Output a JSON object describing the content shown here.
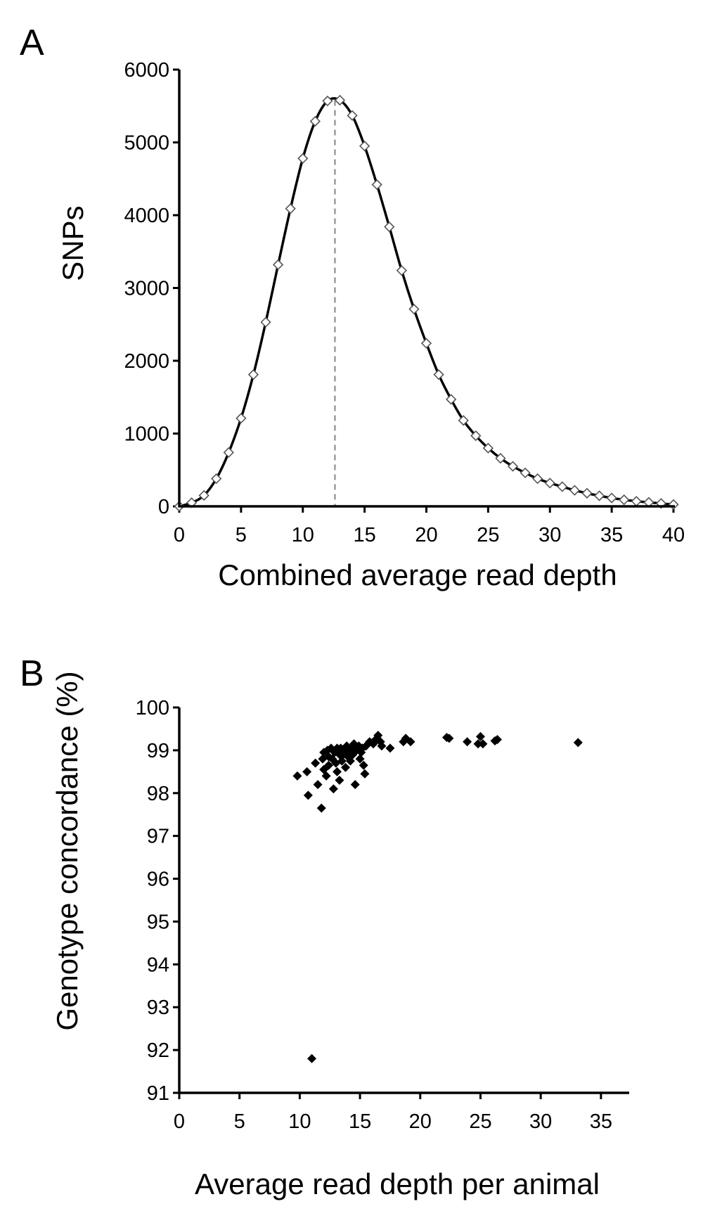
{
  "panels": {
    "a": {
      "letter": "A"
    },
    "b": {
      "letter": "B"
    }
  },
  "chart_data": [
    {
      "type": "line",
      "panel": "A",
      "title": "",
      "xlabel": "Combined average read depth",
      "ylabel": "SNPs",
      "xlim": [
        0,
        40
      ],
      "ylim": [
        0,
        6000
      ],
      "xticks": [
        0,
        5,
        10,
        15,
        20,
        25,
        30,
        35,
        40
      ],
      "yticks": [
        0,
        1000,
        2000,
        3000,
        4000,
        5000,
        6000
      ],
      "marker": "open-diamond",
      "peak_marker_x": 12.6,
      "x": [
        0,
        1,
        2,
        3,
        4,
        5,
        6,
        7,
        8,
        9,
        10,
        11,
        12,
        13,
        14,
        15,
        16,
        17,
        18,
        19,
        20,
        21,
        22,
        23,
        24,
        25,
        26,
        27,
        28,
        29,
        30,
        31,
        32,
        33,
        34,
        35,
        36,
        37,
        38,
        39,
        40
      ],
      "y": [
        0,
        50,
        150,
        380,
        740,
        1210,
        1810,
        2530,
        3320,
        4090,
        4780,
        5290,
        5570,
        5580,
        5370,
        4950,
        4420,
        3840,
        3240,
        2710,
        2240,
        1810,
        1470,
        1180,
        970,
        800,
        660,
        550,
        460,
        380,
        320,
        270,
        220,
        180,
        145,
        115,
        90,
        70,
        55,
        40,
        25
      ]
    },
    {
      "type": "scatter",
      "panel": "B",
      "title": "",
      "xlabel": "Average read depth per animal",
      "ylabel": "Genotype concordance (%)",
      "xlim": [
        0,
        36
      ],
      "ylim": [
        91,
        100
      ],
      "xticks": [
        0,
        5,
        10,
        15,
        20,
        25,
        30,
        35
      ],
      "yticks": [
        91,
        92,
        93,
        94,
        95,
        96,
        97,
        98,
        99,
        100
      ],
      "marker": "filled-diamond",
      "points": [
        [
          9.8,
          98.4
        ],
        [
          10.6,
          98.5
        ],
        [
          10.7,
          97.95
        ],
        [
          11.0,
          91.8
        ],
        [
          11.3,
          98.7
        ],
        [
          11.5,
          98.2
        ],
        [
          11.8,
          97.65
        ],
        [
          11.9,
          98.8
        ],
        [
          12.0,
          98.95
        ],
        [
          12.0,
          98.55
        ],
        [
          12.2,
          98.4
        ],
        [
          12.3,
          99.0
        ],
        [
          12.4,
          98.85
        ],
        [
          12.4,
          98.65
        ],
        [
          12.6,
          99.05
        ],
        [
          12.7,
          98.8
        ],
        [
          12.8,
          98.1
        ],
        [
          12.9,
          98.95
        ],
        [
          13.0,
          98.7
        ],
        [
          13.1,
          99.05
        ],
        [
          13.1,
          98.5
        ],
        [
          13.3,
          98.9
        ],
        [
          13.3,
          98.3
        ],
        [
          13.4,
          99.05
        ],
        [
          13.5,
          98.75
        ],
        [
          13.6,
          98.9
        ],
        [
          13.7,
          99.0
        ],
        [
          13.8,
          98.6
        ],
        [
          13.9,
          99.1
        ],
        [
          14.0,
          98.85
        ],
        [
          14.1,
          98.95
        ],
        [
          14.2,
          98.75
        ],
        [
          14.3,
          99.05
        ],
        [
          14.4,
          98.9
        ],
        [
          14.5,
          99.15
        ],
        [
          14.6,
          98.2
        ],
        [
          14.7,
          99.0
        ],
        [
          14.9,
          99.1
        ],
        [
          15.0,
          98.8
        ],
        [
          15.1,
          98.95
        ],
        [
          15.2,
          99.05
        ],
        [
          15.3,
          98.65
        ],
        [
          15.4,
          98.45
        ],
        [
          15.5,
          99.1
        ],
        [
          15.8,
          99.2
        ],
        [
          16.1,
          99.15
        ],
        [
          16.3,
          99.25
        ],
        [
          16.5,
          99.35
        ],
        [
          16.7,
          99.2
        ],
        [
          16.8,
          99.1
        ],
        [
          17.5,
          99.05
        ],
        [
          18.6,
          99.2
        ],
        [
          18.8,
          99.28
        ],
        [
          19.2,
          99.2
        ],
        [
          22.2,
          99.3
        ],
        [
          22.4,
          99.28
        ],
        [
          23.9,
          99.2
        ],
        [
          24.8,
          99.15
        ],
        [
          25.0,
          99.32
        ],
        [
          25.2,
          99.15
        ],
        [
          26.2,
          99.22
        ],
        [
          26.4,
          99.25
        ],
        [
          33.1,
          99.18
        ]
      ]
    }
  ]
}
